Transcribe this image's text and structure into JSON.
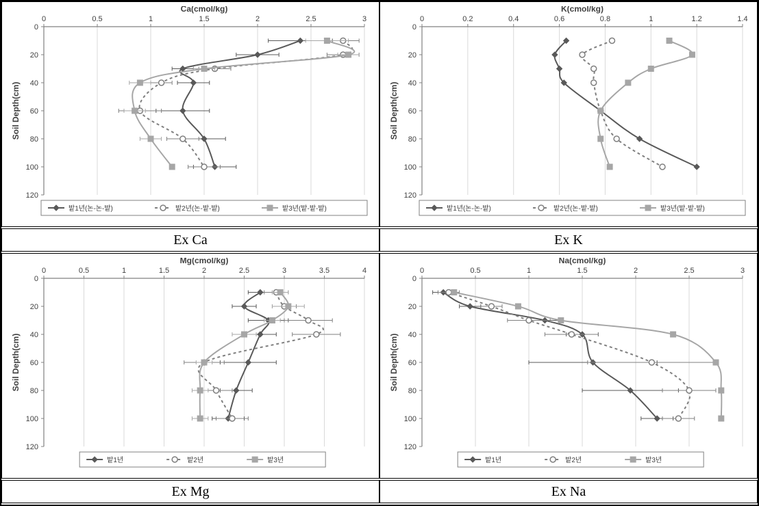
{
  "captions": {
    "ca": "Ex Ca",
    "k": "Ex K",
    "mg": "Ex Mg",
    "na": "Ex Na"
  },
  "common": {
    "ylabel": "Soil Depth(cm)",
    "ylim": [
      0,
      120
    ],
    "yticks": [
      0,
      20,
      40,
      60,
      80,
      100,
      120
    ],
    "label_fontsize": 12,
    "tick_fontsize": 11,
    "background": "#ffffff",
    "grid_color": "#d9d9d9",
    "axis_color": "#808080",
    "series_styles": {
      "s1": {
        "color": "#595959",
        "marker": "diamond",
        "dash": "none",
        "width": 2
      },
      "s2": {
        "color": "#7f7f7f",
        "marker": "circle-open",
        "dash": "4,4",
        "width": 2
      },
      "s3": {
        "color": "#a6a6a6",
        "marker": "square",
        "dash": "none",
        "width": 2
      }
    },
    "legend_longlabels": [
      "밭1년(논-논-밭)",
      "밭2년(논-밭-밭)",
      "밭3년(밭-밭-밭)"
    ],
    "legend_shortlabels": [
      "밭1년",
      "밭2년",
      "밭3년"
    ]
  },
  "charts": {
    "ca": {
      "title": "Ca(cmol/kg)",
      "xlim": [
        0,
        3
      ],
      "xticks": [
        0,
        0.5,
        1,
        1.5,
        2,
        2.5,
        3
      ],
      "legend": "long",
      "depths": [
        10,
        20,
        30,
        40,
        60,
        80,
        100
      ],
      "s1": {
        "x": [
          2.4,
          2.0,
          1.3,
          1.4,
          1.3,
          1.5,
          1.6
        ],
        "xerr": [
          0.3,
          0.2,
          0.1,
          0.15,
          0.25,
          0.2,
          0.2
        ]
      },
      "s2": {
        "x": [
          2.8,
          2.8,
          1.6,
          1.1,
          0.9,
          1.3,
          1.5
        ],
        "xerr": [
          0.15,
          0.15,
          0.15,
          0.1,
          0.2,
          0.15,
          0.15
        ]
      },
      "s3": {
        "x": [
          2.65,
          2.85,
          1.5,
          0.9,
          0.85,
          1.0,
          1.2
        ],
        "xerr": [
          0.2,
          0.1,
          0.1,
          0.1,
          0.1,
          0.1,
          0.0
        ]
      }
    },
    "k": {
      "title": "K(cmol/kg)",
      "xlim": [
        0,
        1.4
      ],
      "xticks": [
        0,
        0.2,
        0.4,
        0.6,
        0.8,
        1,
        1.2,
        1.4
      ],
      "legend": "long",
      "depths": [
        10,
        20,
        30,
        40,
        60,
        80,
        100
      ],
      "s1": {
        "x": [
          0.63,
          0.58,
          0.6,
          0.62,
          0.78,
          0.95,
          1.2
        ]
      },
      "s2": {
        "x": [
          0.83,
          0.7,
          0.75,
          0.75,
          0.78,
          0.85,
          1.05
        ]
      },
      "s3": {
        "x": [
          1.08,
          1.18,
          1.0,
          0.9,
          0.78,
          0.78,
          0.82
        ]
      }
    },
    "mg": {
      "title": "Mg(cmol/kg)",
      "xlim": [
        0,
        4
      ],
      "xticks": [
        0,
        0.5,
        1,
        1.5,
        2,
        2.5,
        3,
        3.5,
        4
      ],
      "legend": "short",
      "depths": [
        10,
        20,
        30,
        40,
        60,
        80,
        100
      ],
      "s1": {
        "x": [
          2.7,
          2.5,
          2.8,
          2.7,
          2.55,
          2.4,
          2.3
        ],
        "xerr": [
          0.15,
          0.15,
          0.25,
          0.2,
          0.35,
          0.2,
          0.2
        ]
      },
      "s2": {
        "x": [
          2.9,
          3.0,
          3.3,
          3.4,
          2.0,
          2.15,
          2.35
        ],
        "xerr": [
          0.15,
          0.15,
          0.3,
          0.3,
          0.25,
          0.2,
          0.2
        ]
      },
      "s3": {
        "x": [
          2.95,
          3.05,
          2.85,
          2.5,
          2.0,
          1.95,
          1.95
        ],
        "xerr": [
          0.1,
          0.2,
          0.1,
          0.15,
          0.1,
          0.1,
          0.1
        ]
      }
    },
    "na": {
      "title": "Na(cmol/kg)",
      "xlim": [
        0,
        3
      ],
      "xticks": [
        0,
        0.5,
        1,
        1.5,
        2,
        2.5,
        3
      ],
      "legend": "short",
      "depths": [
        10,
        20,
        30,
        40,
        60,
        80,
        100
      ],
      "s1": {
        "x": [
          0.2,
          0.45,
          1.15,
          1.5,
          1.6,
          1.95,
          2.2
        ],
        "xerr": [
          0.1,
          0.1,
          0.15,
          0.15,
          0.6,
          0.45,
          0.15
        ]
      },
      "s2": {
        "x": [
          0.25,
          0.65,
          1.0,
          1.4,
          2.15,
          2.5,
          2.4
        ],
        "xerr": [
          0.1,
          0.1,
          0.2,
          0.25,
          0.6,
          0.25,
          0.15
        ]
      },
      "s3": {
        "x": [
          0.3,
          0.9,
          1.3,
          2.35,
          2.75,
          2.8,
          2.8
        ],
        "xerr": [
          0.0,
          0.0,
          0.0,
          0.0,
          0.0,
          0.0,
          0.0
        ]
      }
    }
  }
}
